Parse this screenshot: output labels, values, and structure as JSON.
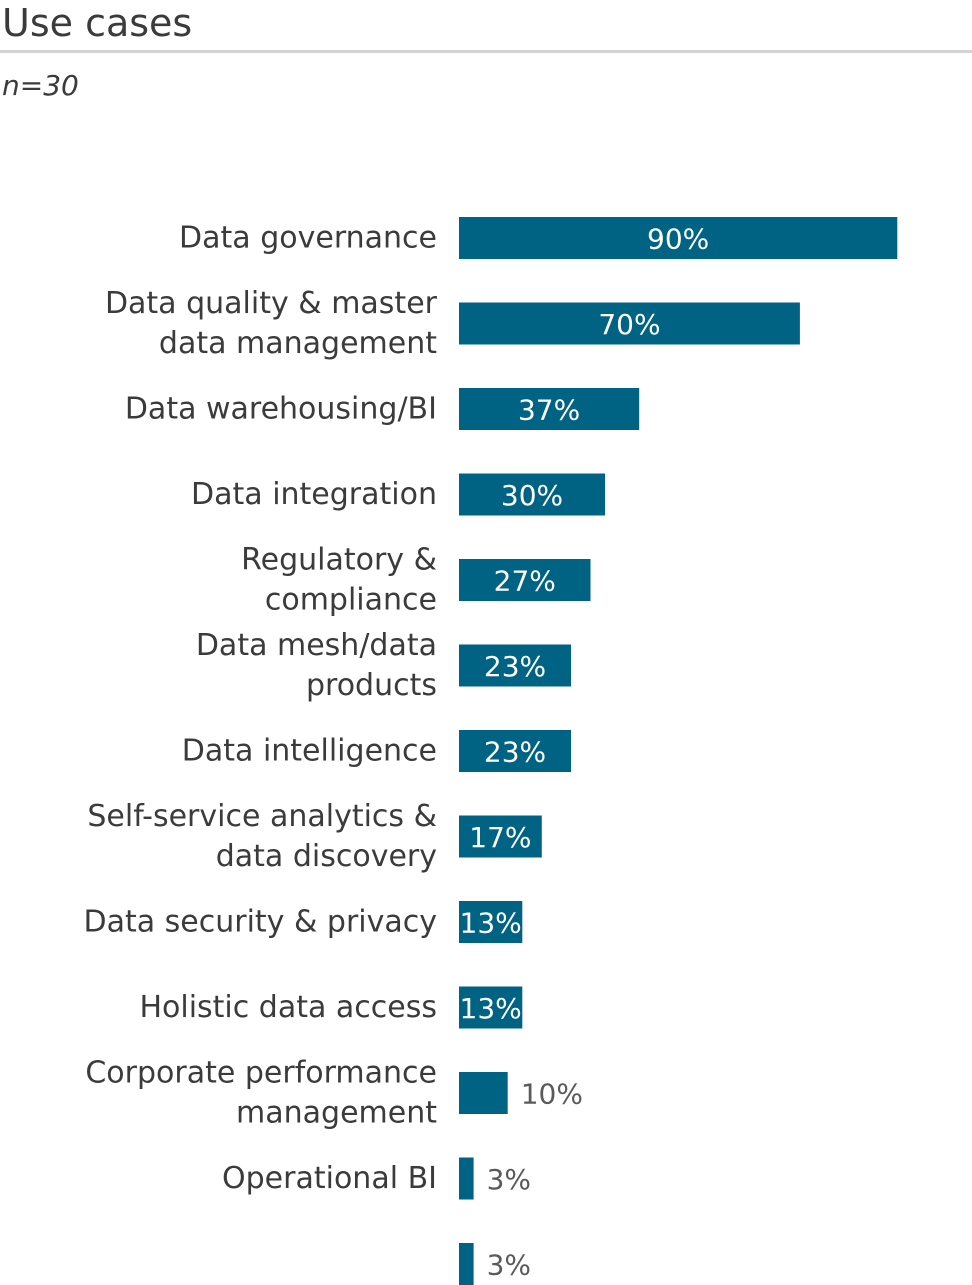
{
  "header": {
    "title": "Use cases",
    "sample": "n=30"
  },
  "colors": {
    "bar": "#006383",
    "label_inside": "#ffffff",
    "label_outside": "#5a5a5a",
    "text": "#3b3b3b"
  },
  "chart_data": {
    "type": "bar",
    "orientation": "horizontal",
    "title": "Use cases",
    "subtitle": "n=30",
    "xlabel": "",
    "ylabel": "",
    "xlim": [
      0,
      100
    ],
    "grid": false,
    "legend": "none",
    "categories": [
      [
        "Data governance"
      ],
      [
        "Data quality & master",
        "data management"
      ],
      [
        "Data warehousing/BI"
      ],
      [
        "Data integration"
      ],
      [
        "Regulatory &",
        "compliance"
      ],
      [
        "Data mesh/data",
        "products"
      ],
      [
        "Data intelligence"
      ],
      [
        "Self-service analytics &",
        "data discovery"
      ],
      [
        "Data security & privacy"
      ],
      [
        "Holistic data access"
      ],
      [
        "Corporate performance",
        "management"
      ],
      [
        "Operational BI"
      ],
      []
    ],
    "values": [
      90,
      70,
      37,
      30,
      27,
      23,
      23,
      17,
      13,
      13,
      10,
      3,
      3
    ],
    "value_labels": [
      "90%",
      "70%",
      "37%",
      "30%",
      "27%",
      "23%",
      "23%",
      "17%",
      "13%",
      "13%",
      "10%",
      "3%",
      "3%"
    ]
  }
}
